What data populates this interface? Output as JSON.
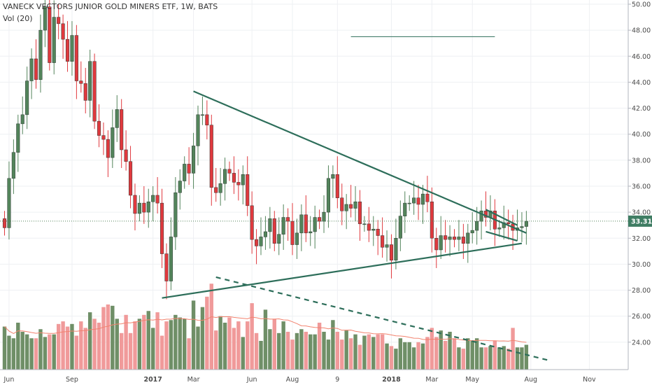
{
  "header": {
    "title": "VANECK VECTORS JUNIOR GOLD MINERS ETF, 1W, BATS",
    "volume_label": "Vol (20)"
  },
  "colors": {
    "up": "#53845b",
    "down": "#e0393e",
    "vol_up": "#6f8f67",
    "vol_down": "#f09a9a",
    "vol_ma": "#f2826e",
    "trendline": "#2d6e5a",
    "last_price_bg": "#3f7d63"
  },
  "chart_data": {
    "type": "candlestick",
    "title": "VANECK VECTORS JUNIOR GOLD MINERS ETF, 1W, BATS",
    "ylim": [
      21.8,
      50.2
    ],
    "y_ticks": [
      24,
      26,
      28,
      30,
      32,
      34,
      36,
      38,
      40,
      42,
      44,
      46,
      48,
      50
    ],
    "y_tick_labels": [
      "24.00",
      "26.00",
      "28.00",
      "30.00",
      "32.00",
      "34.00",
      "36.00",
      "38.00",
      "40.00",
      "42.00",
      "44.00",
      "46.00",
      "48.00",
      "50.00"
    ],
    "x_tick_labels": [
      "Jun",
      "Sep",
      "2017",
      "Mar",
      "Jun",
      "Aug",
      "9",
      "2018",
      "Mar",
      "May",
      "Aug",
      "Nov"
    ],
    "last_price": 33.31,
    "last_price_label": "33.31",
    "closes": [
      32.8,
      36.6,
      38.6,
      40.8,
      41.5,
      44.1,
      45.8,
      44.2,
      48.0,
      49.8,
      45.5,
      49.0,
      48.5,
      47.3,
      45.6,
      47.6,
      44.1,
      43.9,
      42.6,
      45.6,
      41.0,
      39.9,
      39.6,
      38.2,
      40.5,
      41.9,
      38.8,
      37.9,
      35.3,
      33.9,
      34.7,
      34.0,
      34.8,
      35.3,
      34.7,
      30.8,
      28.7,
      32.1,
      35.5,
      36.4,
      37.7,
      37.0,
      39.1,
      41.5,
      41.5,
      40.7,
      35.9,
      35.5,
      36.2,
      37.3,
      37.0,
      36.3,
      36.1,
      36.9,
      34.5,
      31.9,
      31.4,
      32.1,
      32.5,
      33.5,
      31.6,
      32.3,
      33.6,
      33.3,
      31.5,
      32.4,
      33.8,
      32.4,
      32.5,
      33.6,
      33.3,
      34.0,
      36.6,
      36.9,
      35.1,
      34.1,
      34.6,
      34.3,
      34.8,
      33.1,
      33.1,
      32.6,
      32.7,
      32.2,
      31.3,
      31.5,
      30.3,
      32.0,
      33.7,
      34.7,
      34.7,
      35.1,
      34.6,
      35.4,
      34.8,
      32.0,
      31.1,
      32.2,
      31.9,
      32.1,
      31.9,
      32.1,
      31.6,
      32.4,
      32.6,
      33.3,
      34.1,
      33.6,
      34.1,
      32.7,
      32.8,
      33.2,
      33.1,
      32.6,
      32.8,
      32.9,
      33.3
    ],
    "volumes": [
      25.2,
      24.5,
      24.3,
      25.5,
      24.8,
      24.6,
      24.3,
      24.3,
      25.0,
      24.4,
      24.6,
      24.6,
      25.4,
      25.6,
      25.2,
      25.4,
      24.5,
      25.6,
      25.1,
      26.3,
      25.8,
      25.5,
      26.7,
      26.9,
      26.8,
      25.8,
      24.7,
      26.1,
      24.7,
      25.6,
      25.8,
      26.1,
      26.4,
      25.1,
      26.3,
      24.5,
      25.6,
      25.7,
      26.1,
      25.9,
      25.8,
      24.3,
      27.2,
      25.2,
      26.7,
      27.5,
      28.5,
      24.9,
      26.0,
      25.5,
      25.9,
      25.1,
      25.6,
      24.4,
      25.6,
      27.0,
      24.7,
      24.1,
      26.5,
      25.0,
      25.8,
      24.7,
      25.6,
      24.8,
      24.2,
      24.7,
      25.0,
      24.8,
      24.6,
      24.6,
      25.5,
      24.8,
      24.2,
      25.7,
      24.8,
      24.2,
      24.9,
      24.3,
      24.6,
      23.8,
      24.5,
      24.6,
      24.4,
      24.6,
      24.6,
      23.9,
      23.7,
      23.5,
      24.3,
      24.0,
      24.0,
      23.6,
      24.0,
      23.9,
      24.4,
      25.1,
      24.4,
      24.9,
      24.1,
      24.8,
      24.3,
      23.6,
      23.5,
      24.3,
      24.1,
      24.3,
      23.6,
      23.6,
      23.7,
      24.1,
      23.6,
      23.7,
      23.5,
      25.1,
      23.6,
      23.6,
      23.8
    ],
    "trendlines": [
      {
        "name": "",
        "style": "solid",
        "from": {
          "x": 42,
          "y": 43.3
        },
        "to": {
          "x": 116,
          "y": 32.4
        }
      },
      {
        "name": "",
        "style": "solid",
        "from": {
          "x": 35,
          "y": 27.4
        },
        "to": {
          "x": 115,
          "y": 31.6
        }
      },
      {
        "name": "",
        "style": "solid",
        "from": {
          "x": 107,
          "y": 34.2
        },
        "to": {
          "x": 114,
          "y": 33.0
        }
      },
      {
        "name": "",
        "style": "solid",
        "from": {
          "x": 107,
          "y": 32.5
        },
        "to": {
          "x": 114,
          "y": 31.8
        }
      },
      {
        "name": "",
        "style": "solid",
        "from": {
          "x": 77,
          "y": 47.5
        },
        "to": {
          "x": 109,
          "y": 47.5
        }
      },
      {
        "name": "",
        "style": "dashed",
        "from": {
          "x": 47,
          "y": 29.0
        },
        "to": {
          "x": 121,
          "y": 22.6
        }
      }
    ]
  }
}
